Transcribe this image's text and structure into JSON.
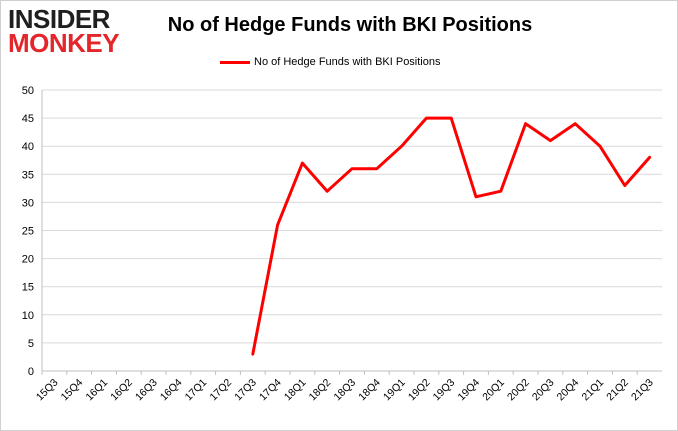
{
  "brand": {
    "logo_line1": "INSIDER",
    "logo_line2": "MONKEY"
  },
  "chart_data": {
    "type": "line",
    "title": "No of Hedge Funds with BKI Positions",
    "xlabel": "",
    "ylabel": "",
    "ylim": [
      0,
      50
    ],
    "yticks": [
      0,
      5,
      10,
      15,
      20,
      25,
      30,
      35,
      40,
      45,
      50
    ],
    "grid": true,
    "legend_position": "top-center",
    "categories": [
      "15Q3",
      "15Q4",
      "16Q1",
      "16Q2",
      "16Q3",
      "16Q4",
      "17Q1",
      "17Q2",
      "17Q3",
      "17Q4",
      "18Q1",
      "18Q2",
      "18Q3",
      "18Q4",
      "19Q1",
      "19Q2",
      "19Q3",
      "19Q4",
      "20Q1",
      "20Q2",
      "20Q3",
      "20Q4",
      "21Q1",
      "21Q2",
      "21Q3"
    ],
    "series": [
      {
        "name": "No of Hedge Funds with BKI Positions",
        "color": "#ff0000",
        "values": [
          null,
          null,
          null,
          null,
          null,
          null,
          null,
          null,
          3,
          26,
          37,
          32,
          36,
          36,
          40,
          45,
          45,
          31,
          32,
          44,
          41,
          44,
          40,
          33,
          38
        ]
      }
    ]
  }
}
